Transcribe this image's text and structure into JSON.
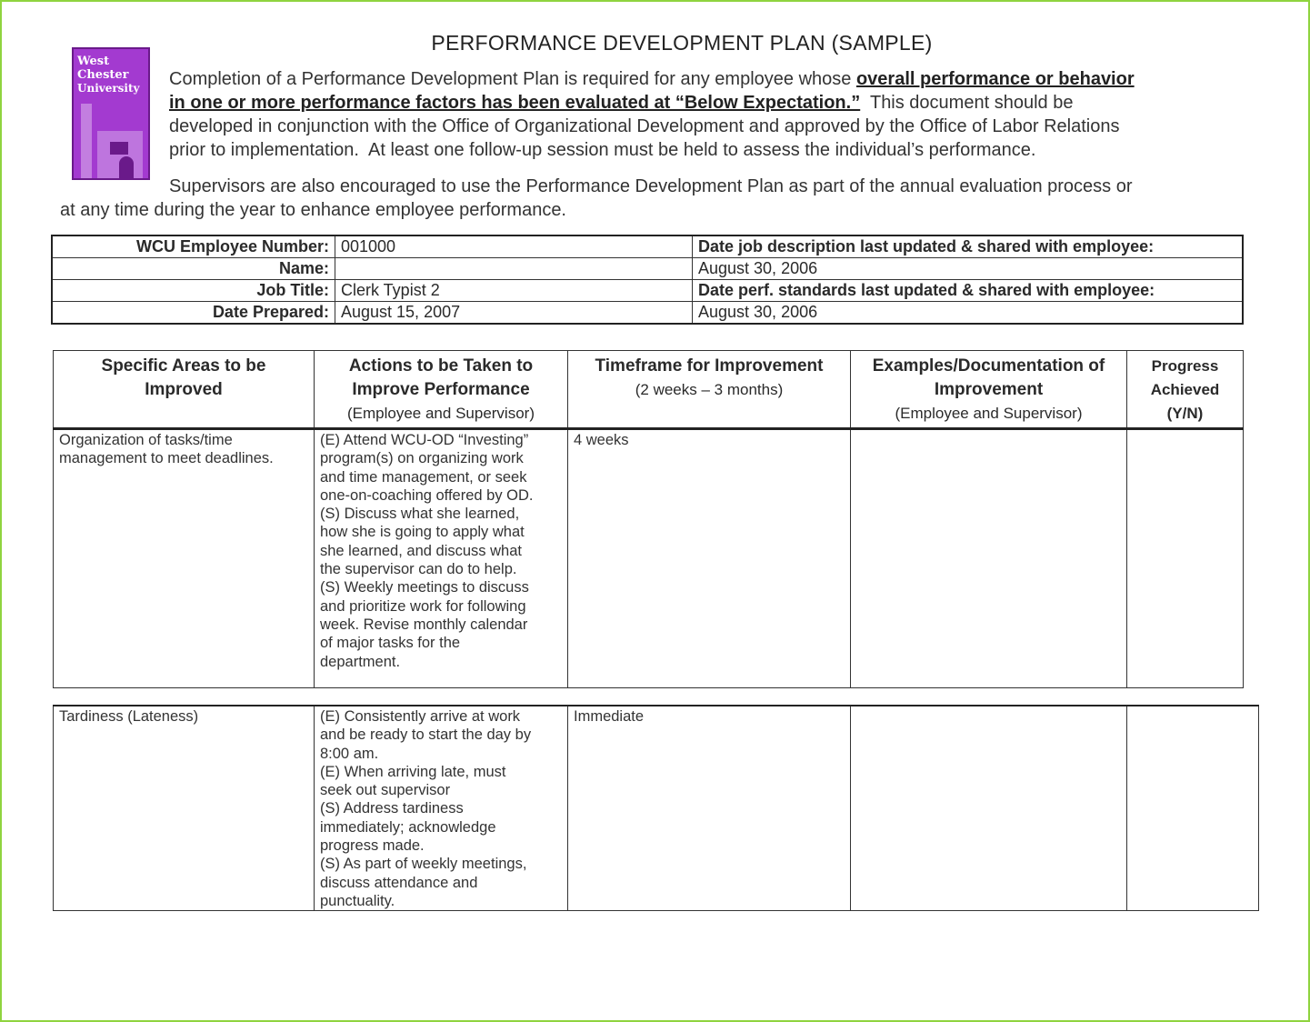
{
  "title": "PERFORMANCE DEVELOPMENT PLAN (SAMPLE)",
  "logo": {
    "text": "West Chester University",
    "color": "#9b2fc8"
  },
  "intro": {
    "p1_l1_a": "Completion of a Performance Development Plan is required for any employee whose ",
    "p1_l1_b": "overall performance or behavior",
    "p1_l2_a": "in one or more performance factors has been evaluated at “Below Expectation.”",
    "p1_l2_b": "  This document should be",
    "p1_l3": "developed in conjunction with the Office of Organizational Development and approved by the Office of Labor Relations",
    "p1_l4": "prior to implementation.  At least one follow-up session must be held to assess the individual’s performance.",
    "p2_l1": "Supervisors are also encouraged to use the Performance Development Plan as part of the annual evaluation process or",
    "p2_l2": "at any time during the year to enhance employee performance."
  },
  "info": {
    "employee_number_label": "WCU Employee Number:",
    "employee_number": "001000",
    "name_label": "Name:",
    "name": "",
    "job_title_label": "Job Title:",
    "job_title": "Clerk Typist 2",
    "date_prepared_label": "Date Prepared:",
    "date_prepared": "August 15, 2007",
    "job_desc_label": "Date job description last updated & shared with employee:",
    "job_desc_date": "August 30, 2006",
    "perf_std_label": "Date perf. standards last updated & shared with employee:",
    "perf_std_date": "August 30, 2006"
  },
  "plan": {
    "headers": [
      {
        "l1": "Specific Areas to be",
        "l2": "Improved",
        "sub": ""
      },
      {
        "l1": "Actions to be Taken to",
        "l2": "Improve Performance",
        "sub": "(Employee and Supervisor)"
      },
      {
        "l1": "Timeframe for Improvement",
        "l2": "",
        "sub": "(2 weeks – 3 months)"
      },
      {
        "l1": "Examples/Documentation of",
        "l2": "Improvement",
        "sub": "(Employee and Supervisor)"
      },
      {
        "l1": "Progress",
        "l2": "Achieved",
        "sub": "(Y/N)"
      }
    ],
    "rows": [
      {
        "area": [
          "Organization of tasks/time",
          "management to meet deadlines."
        ],
        "actions": [
          "(E)  Attend WCU-OD “Investing”",
          "program(s) on organizing work",
          "and time management, or seek",
          "one-on-coaching offered by OD.",
          "(S) Discuss what she learned,",
          "how she is going to apply what",
          "she learned, and discuss what",
          "the supervisor can do to help.",
          "(S) Weekly meetings to discuss",
          "and prioritize work for following",
          "week. Revise monthly calendar",
          "of major tasks for the",
          "department."
        ],
        "timeframe": "4 weeks",
        "examples": "",
        "progress": ""
      },
      {
        "area": [
          "Tardiness (Lateness)"
        ],
        "actions": [
          "(E) Consistently arrive at work",
          "and be ready to start the day by",
          "8:00 am.",
          "(E) When arriving late, must",
          "seek out supervisor",
          "(S) Address tardiness",
          "immediately; acknowledge",
          "progress made.",
          "(S) As part of weekly meetings,",
          "discuss attendance and",
          "punctuality."
        ],
        "timeframe": "Immediate",
        "examples": "",
        "progress": ""
      }
    ]
  }
}
